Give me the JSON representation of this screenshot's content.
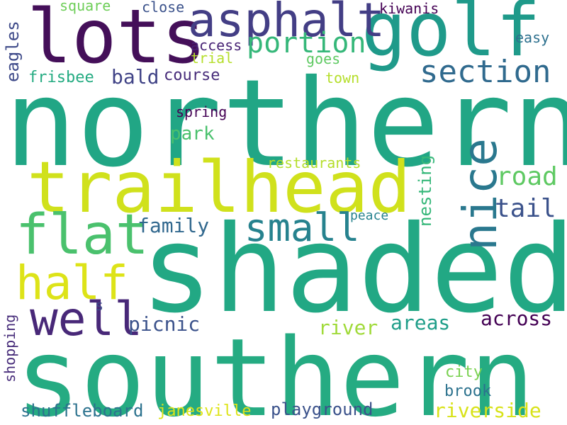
{
  "words": {
    "northern": {
      "text": "northern",
      "color": "#21a685"
    },
    "shaded": {
      "text": "shaded",
      "color": "#22a884"
    },
    "southern": {
      "text": "southern",
      "color": "#25ab82"
    },
    "trailhead": {
      "text": "trailhead",
      "color": "#d0e11c"
    },
    "lots": {
      "text": "lots",
      "color": "#440f59"
    },
    "golf": {
      "text": "golf",
      "color": "#1f9a8a"
    },
    "asphalt": {
      "text": "asphalt",
      "color": "#433e85"
    },
    "flat": {
      "text": "flat",
      "color": "#4ac16d"
    },
    "half": {
      "text": "half",
      "color": "#dde318"
    },
    "well": {
      "text": "well",
      "color": "#482878"
    },
    "nice": {
      "text": "nice",
      "color": "#2a788e"
    },
    "section": {
      "text": "section",
      "color": "#306a8e"
    },
    "portion": {
      "text": "portion",
      "color": "#35b779"
    },
    "small": {
      "text": "small",
      "color": "#26828e"
    },
    "road": {
      "text": "road",
      "color": "#5ec962"
    },
    "tail": {
      "text": "tail",
      "color": "#3b528b"
    },
    "family": {
      "text": "family",
      "color": "#31688e"
    },
    "bald": {
      "text": "bald",
      "color": "#414487"
    },
    "picnic": {
      "text": "picnic",
      "color": "#3b528b"
    },
    "across": {
      "text": "across",
      "color": "#440154"
    },
    "areas": {
      "text": "areas",
      "color": "#1f9e89"
    },
    "river": {
      "text": "river",
      "color": "#a0da39"
    },
    "riverside": {
      "text": "riverside",
      "color": "#d8e219"
    },
    "park": {
      "text": "park",
      "color": "#4ac16d"
    },
    "eagles": {
      "text": "eagles",
      "color": "#3e4a89"
    },
    "nesting": {
      "text": "nesting",
      "color": "#35b779"
    },
    "shuffleboard": {
      "text": "shuffleboard",
      "color": "#2c728e"
    },
    "playground": {
      "text": "playground",
      "color": "#3b528b"
    },
    "frisbee": {
      "text": "frisbee",
      "color": "#25ab82"
    },
    "course": {
      "text": "course",
      "color": "#472c7a"
    },
    "access": {
      "text": "access",
      "color": "#482475"
    },
    "trial": {
      "text": "trial",
      "color": "#b5de2b"
    },
    "goes": {
      "text": "goes",
      "color": "#5ec962"
    },
    "town": {
      "text": "town",
      "color": "#b5de2b"
    },
    "close": {
      "text": "close",
      "color": "#3b528b"
    },
    "square": {
      "text": "square",
      "color": "#6ece58"
    },
    "kiwanis": {
      "text": "kiwanis",
      "color": "#440154"
    },
    "easy": {
      "text": "easy",
      "color": "#2d708e"
    },
    "spring": {
      "text": "spring",
      "color": "#440154"
    },
    "restaurants": {
      "text": "restaurants",
      "color": "#b5de2b"
    },
    "peace": {
      "text": "peace",
      "color": "#26828e"
    },
    "s": {
      "text": "s",
      "color": "#3e4a89"
    },
    "shopping": {
      "text": "shopping",
      "color": "#472c7a"
    },
    "city": {
      "text": "city",
      "color": "#7ad151"
    },
    "brook": {
      "text": "brook",
      "color": "#2c728e"
    },
    "janesville": {
      "text": "janesville",
      "color": "#dde318"
    }
  }
}
